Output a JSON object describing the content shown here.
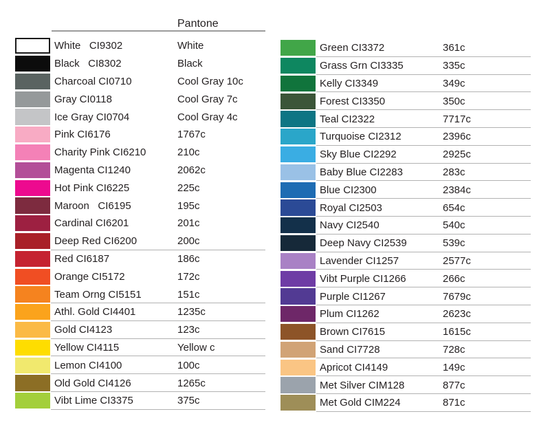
{
  "header": {
    "pantone_label": "Pantone"
  },
  "style": {
    "text_color": "#231f20",
    "rule_color": "#b2b2b2",
    "header_rule_color": "#9c9c9c",
    "background": "#ffffff"
  },
  "chart_data": {
    "type": "table",
    "title": "",
    "description": "Color swatch reference table mapping ink color names and CI codes to Pantone codes",
    "column_headers": [
      "swatch",
      "color name + CI code",
      "Pantone code"
    ],
    "columns": [
      {
        "id": "left",
        "rows": [
          {
            "name": "White   CI9302",
            "pantone": "White",
            "color": "#ffffff",
            "bordered": true,
            "rule": false
          },
          {
            "name": "Black   CI8302",
            "pantone": "Black",
            "color": "#0c0c0c",
            "bordered": false,
            "rule": false
          },
          {
            "name": "Charcoal CI0710",
            "pantone": "Cool Gray 10c",
            "color": "#5a6361",
            "bordered": false,
            "rule": false
          },
          {
            "name": "Gray CI0118",
            "pantone": "Cool Gray 7c",
            "color": "#95999a",
            "bordered": false,
            "rule": false
          },
          {
            "name": "Ice Gray CI0704",
            "pantone": "Cool Gray 4c",
            "color": "#c4c5c7",
            "bordered": false,
            "rule": false
          },
          {
            "name": "Pink CI6176",
            "pantone": "1767c",
            "color": "#f8abc4",
            "bordered": false,
            "rule": false
          },
          {
            "name": "Charity Pink CI6210",
            "pantone": "210c",
            "color": "#f481b7",
            "bordered": false,
            "rule": false
          },
          {
            "name": "Magenta CI1240",
            "pantone": "2062c",
            "color": "#b34e98",
            "bordered": false,
            "rule": false
          },
          {
            "name": "Hot Pink CI6225",
            "pantone": "225c",
            "color": "#ed0a8f",
            "bordered": false,
            "rule": false
          },
          {
            "name": "Maroon   CI6195",
            "pantone": "195c",
            "color": "#7d2b3f",
            "bordered": false,
            "rule": false
          },
          {
            "name": "Cardinal CI6201",
            "pantone": "201c",
            "color": "#9d2041",
            "bordered": false,
            "rule": false
          },
          {
            "name": "Deep Red CI6200",
            "pantone": "200c",
            "color": "#a92028",
            "bordered": false,
            "rule": true
          },
          {
            "name": "Red CI6187",
            "pantone": "186c",
            "color": "#c52331",
            "bordered": false,
            "rule": false
          },
          {
            "name": "Orange CI5172",
            "pantone": "172c",
            "color": "#f04e23",
            "bordered": false,
            "rule": false
          },
          {
            "name": "Team Orng CI5151",
            "pantone": "151c",
            "color": "#f5831f",
            "bordered": false,
            "rule": true
          },
          {
            "name": "Athl. Gold CI4401",
            "pantone": "1235c",
            "color": "#fba31c",
            "bordered": false,
            "rule": true
          },
          {
            "name": "Gold CI4123",
            "pantone": "123c",
            "color": "#fbba45",
            "bordered": false,
            "rule": true
          },
          {
            "name": "Yellow CI4115",
            "pantone": "Yellow c",
            "color": "#fedd00",
            "bordered": false,
            "rule": true
          },
          {
            "name": "Lemon CI4100",
            "pantone": "100c",
            "color": "#f1e96e",
            "bordered": false,
            "rule": true
          },
          {
            "name": "Old Gold CI4126",
            "pantone": "1265c",
            "color": "#8c6e25",
            "bordered": false,
            "rule": true
          },
          {
            "name": "Vibt Lime CI3375",
            "pantone": "375c",
            "color": "#a3cf3b",
            "bordered": false,
            "rule": true
          }
        ]
      },
      {
        "id": "right",
        "rows": [
          {
            "name": "Green CI3372",
            "pantone": "361c",
            "color": "#41a648",
            "bordered": false,
            "rule": true
          },
          {
            "name": "Grass Grn CI3335",
            "pantone": "335c",
            "color": "#0e8760",
            "bordered": false,
            "rule": true
          },
          {
            "name": "Kelly CI3349",
            "pantone": "349c",
            "color": "#10743c",
            "bordered": false,
            "rule": true
          },
          {
            "name": "Forest CI3350",
            "pantone": "350c",
            "color": "#3b5538",
            "bordered": false,
            "rule": true
          },
          {
            "name": "Teal CI2322",
            "pantone": "7717c",
            "color": "#0d7584",
            "bordered": false,
            "rule": true
          },
          {
            "name": "Turquoise CI2312",
            "pantone": "2396c",
            "color": "#2aa6c9",
            "bordered": false,
            "rule": true
          },
          {
            "name": "Sky Blue CI2292",
            "pantone": "2925c",
            "color": "#3aade3",
            "bordered": false,
            "rule": true
          },
          {
            "name": "Baby Blue CI2283",
            "pantone": "283c",
            "color": "#9ac1e6",
            "bordered": false,
            "rule": true
          },
          {
            "name": "Blue CI2300",
            "pantone": "2384c",
            "color": "#1e6cb3",
            "bordered": false,
            "rule": true
          },
          {
            "name": "Royal CI2503",
            "pantone": "654c",
            "color": "#2b4a96",
            "bordered": false,
            "rule": true
          },
          {
            "name": "Navy CI2540",
            "pantone": "540c",
            "color": "#13304a",
            "bordered": false,
            "rule": true
          },
          {
            "name": "Deep Navy CI2539",
            "pantone": "539c",
            "color": "#162939",
            "bordered": false,
            "rule": true
          },
          {
            "name": "Lavender CI1257",
            "pantone": "2577c",
            "color": "#a981c5",
            "bordered": false,
            "rule": true
          },
          {
            "name": "Vibt Purple CI1266",
            "pantone": "266c",
            "color": "#6e3ca5",
            "bordered": false,
            "rule": true
          },
          {
            "name": "Purple CI1267",
            "pantone": "7679c",
            "color": "#523a93",
            "bordered": false,
            "rule": true
          },
          {
            "name": "Plum CI1262",
            "pantone": "2623c",
            "color": "#6e2768",
            "bordered": false,
            "rule": true
          },
          {
            "name": "Brown CI7615",
            "pantone": "1615c",
            "color": "#8d5428",
            "bordered": false,
            "rule": true
          },
          {
            "name": "Sand CI7728",
            "pantone": "728c",
            "color": "#d1a376",
            "bordered": false,
            "rule": true
          },
          {
            "name": "Apricot CI4149",
            "pantone": "149c",
            "color": "#fac584",
            "bordered": false,
            "rule": true
          },
          {
            "name": "Met Silver CIM128",
            "pantone": "877c",
            "color": "#9ba3ac",
            "bordered": false,
            "rule": true
          },
          {
            "name": "Met Gold CIM224",
            "pantone": "871c",
            "color": "#9e8e58",
            "bordered": false,
            "rule": true
          }
        ]
      }
    ]
  }
}
